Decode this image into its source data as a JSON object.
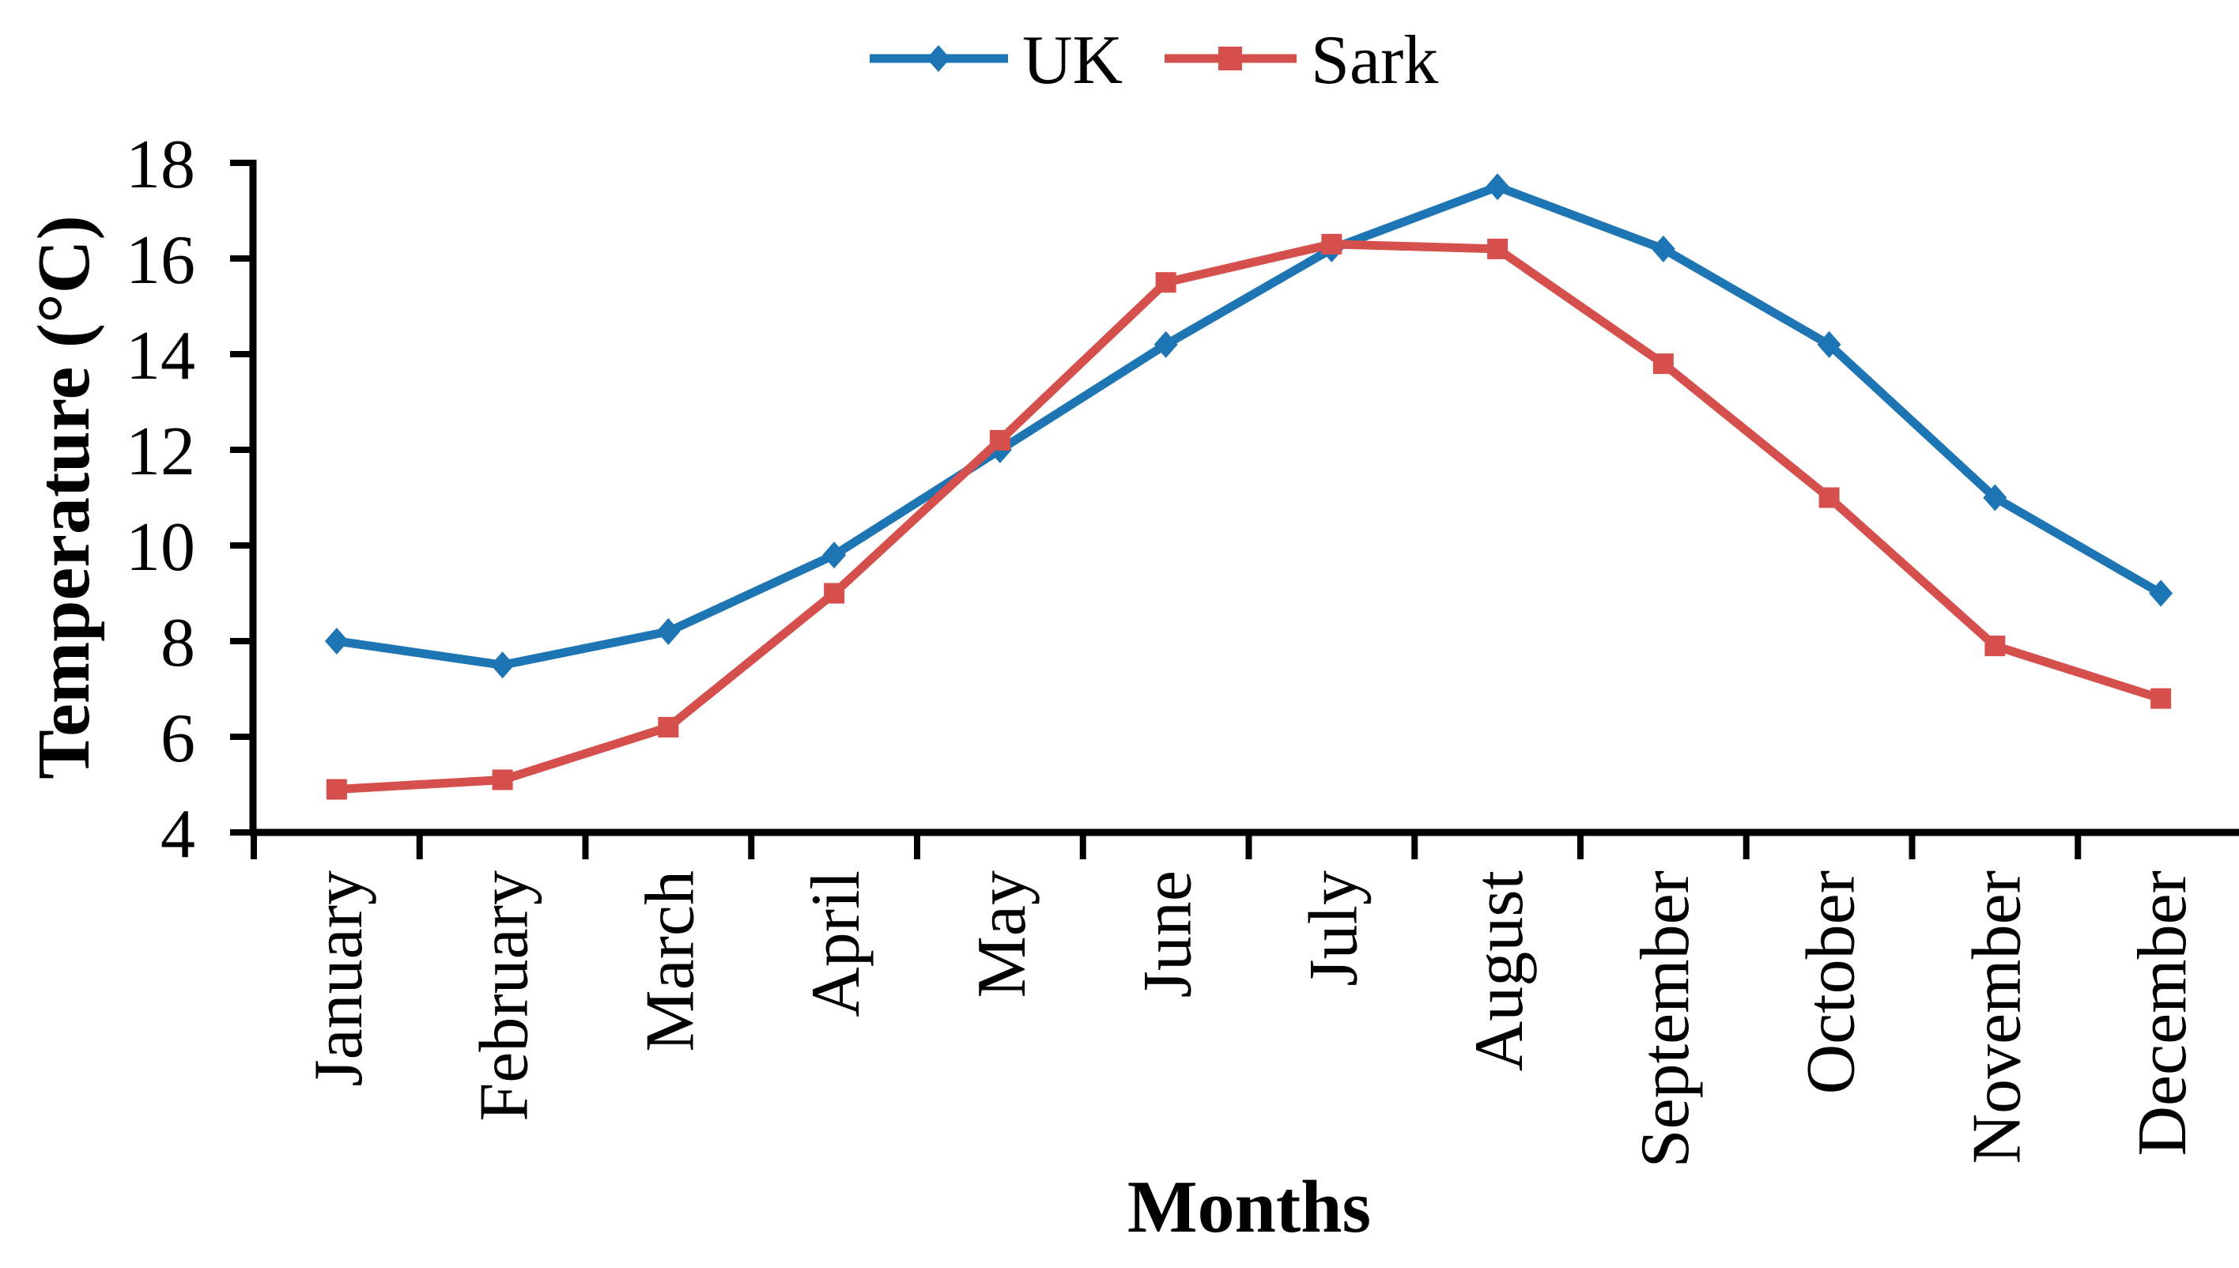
{
  "chart_data": {
    "type": "line",
    "categories": [
      "January",
      "February",
      "March",
      "April",
      "May",
      "June",
      "July",
      "August",
      "September",
      "October",
      "November",
      "December"
    ],
    "series": [
      {
        "name": "UK",
        "color": "#1E75B4",
        "marker": "diamond",
        "values": [
          8.0,
          7.5,
          8.2,
          9.8,
          12.0,
          14.2,
          16.2,
          17.5,
          16.2,
          14.2,
          11.0,
          9.0
        ]
      },
      {
        "name": "Sark",
        "color": "#D5504C",
        "marker": "square",
        "values": [
          4.9,
          5.1,
          6.2,
          9.0,
          12.2,
          15.5,
          16.3,
          16.2,
          13.8,
          11.0,
          7.9,
          6.8
        ]
      }
    ],
    "xlabel": "Months",
    "ylabel": "Temperature (°C)",
    "ylim": [
      4,
      18
    ],
    "yticks": [
      4,
      6,
      8,
      10,
      12,
      14,
      16,
      18
    ],
    "grid": false,
    "legend_position": "top-center",
    "axis_color": "#000000",
    "background": "#FFFFFF"
  }
}
